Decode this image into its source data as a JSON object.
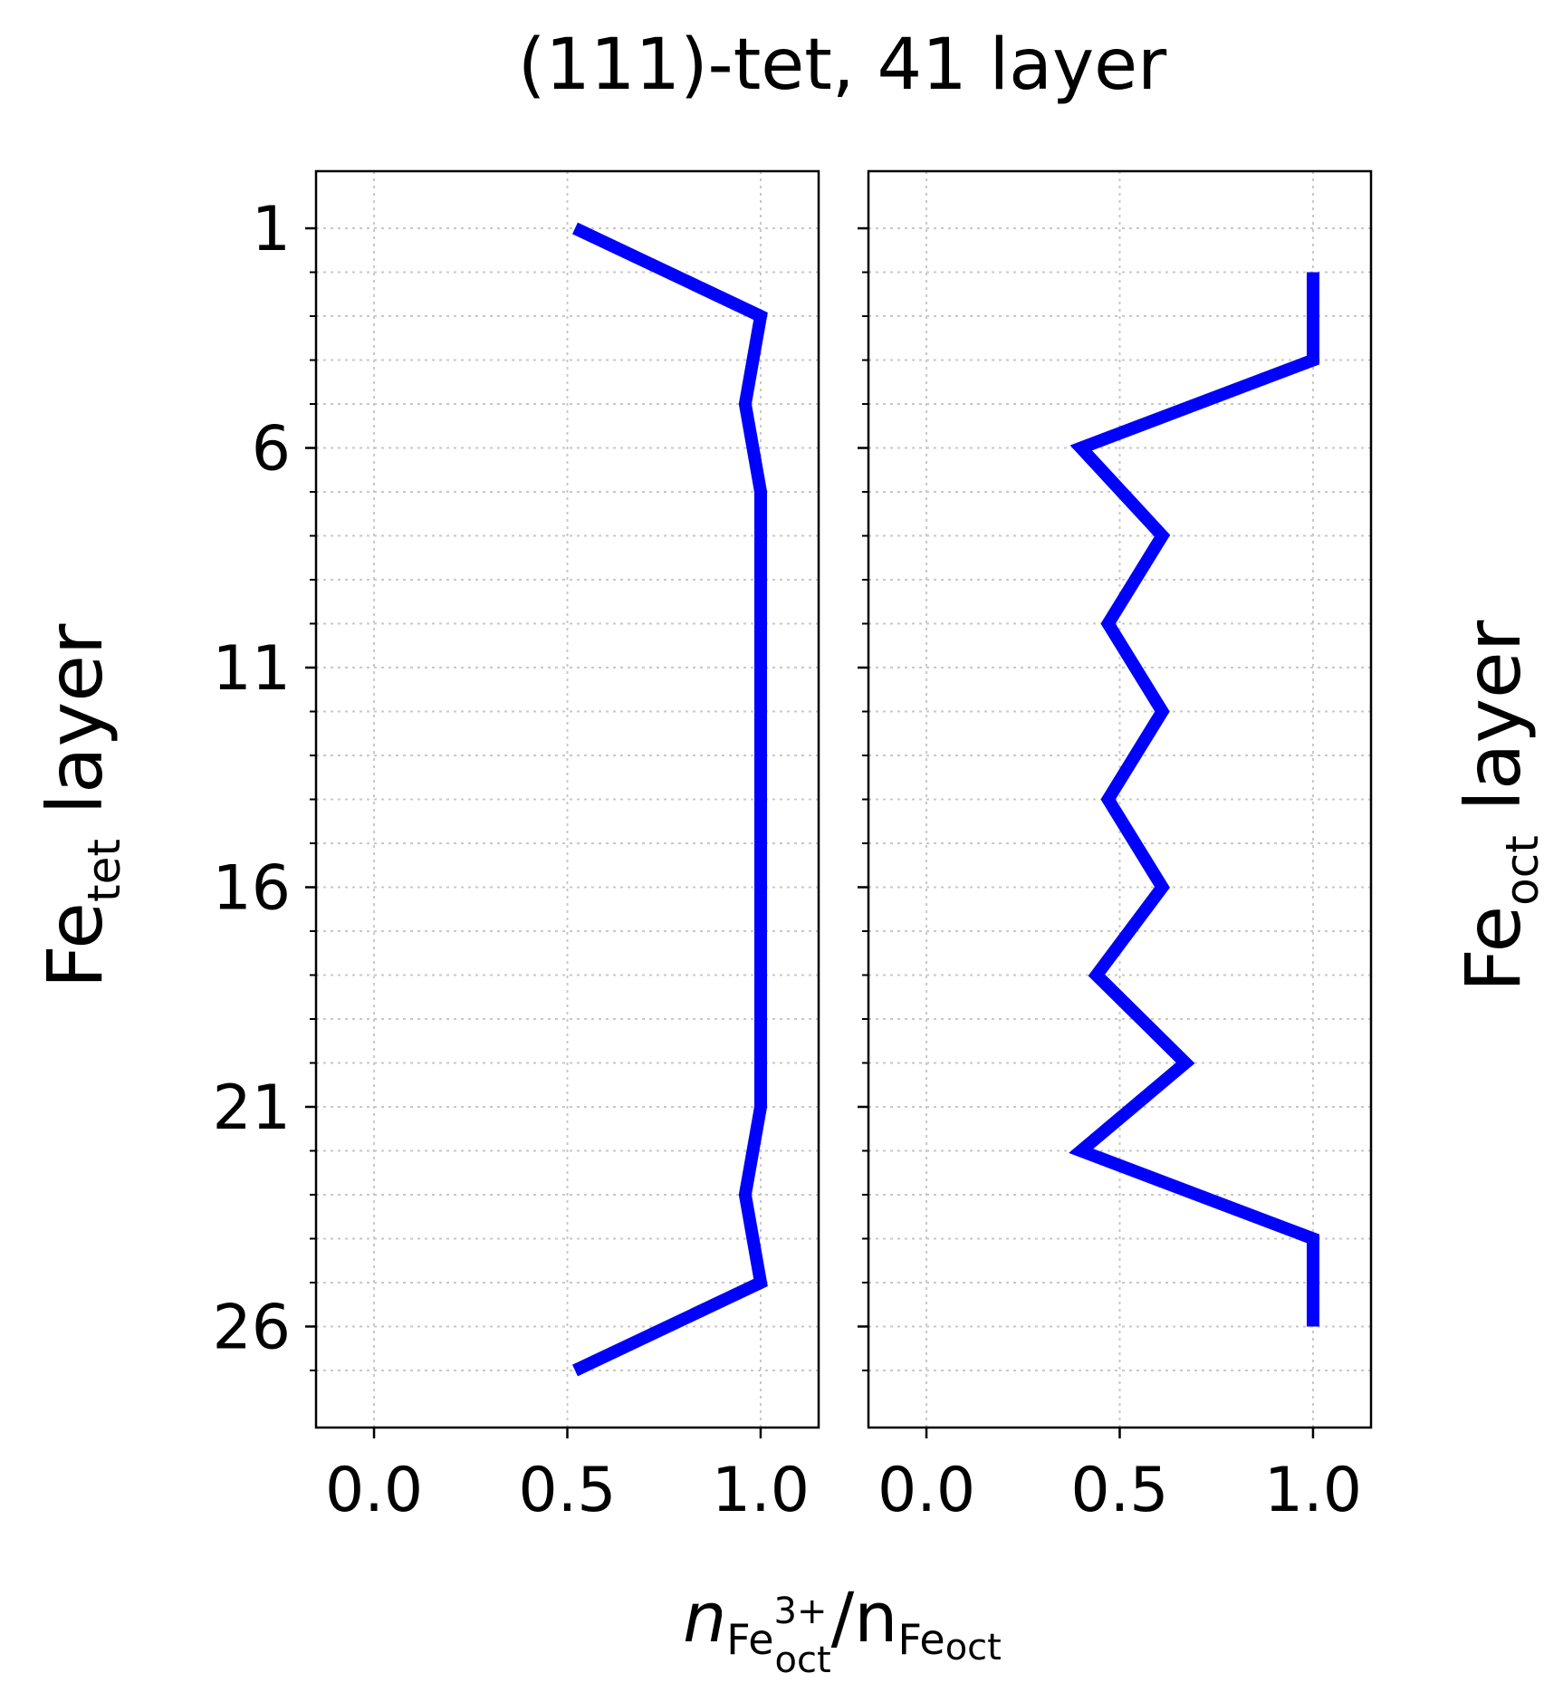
{
  "chart_data": {
    "type": "line",
    "title": "(111)-tet, 41 layer",
    "xlabel": {
      "n": "n",
      "fe3": "Fe",
      "sup": "3+",
      "sub": "oct",
      "slash": "/n",
      "fe": "Fe",
      "sub2": "oct"
    },
    "xlim": [
      -0.15,
      1.15
    ],
    "xticks": [
      "0.0",
      "0.5",
      "1.0"
    ],
    "grid": true,
    "panels": [
      {
        "ylabel": {
          "base": "Fe",
          "sub": "tet",
          "rest": " layer"
        },
        "ylabel_side": "left",
        "ylim": [
          28.3,
          -0.3
        ],
        "yticks": [
          "1",
          "6",
          "11",
          "16",
          "21",
          "26"
        ],
        "series": [
          {
            "color": "#0000ff",
            "y": [
              1,
              3,
              5,
              7,
              9,
              11,
              13,
              15,
              17,
              19,
              21,
              23,
              25,
              27
            ],
            "x": [
              0.52,
              1.0,
              0.96,
              1.0,
              1.0,
              1.0,
              1.0,
              1.0,
              1.0,
              1.0,
              1.0,
              0.96,
              1.0,
              0.52
            ]
          }
        ]
      },
      {
        "ylabel": {
          "base": "Fe",
          "sub": "oct",
          "rest": " layer"
        },
        "ylabel_side": "right",
        "ylim": [
          28.3,
          -0.3
        ],
        "series": [
          {
            "color": "#0000ff",
            "y": [
              2,
              4,
              6,
              8,
              10,
              12,
              14,
              16,
              18,
              20,
              22,
              24,
              26
            ],
            "x": [
              1.0,
              1.0,
              0.4,
              0.61,
              0.47,
              0.61,
              0.47,
              0.61,
              0.44,
              0.67,
              0.4,
              1.0,
              1.0
            ]
          }
        ]
      }
    ]
  }
}
